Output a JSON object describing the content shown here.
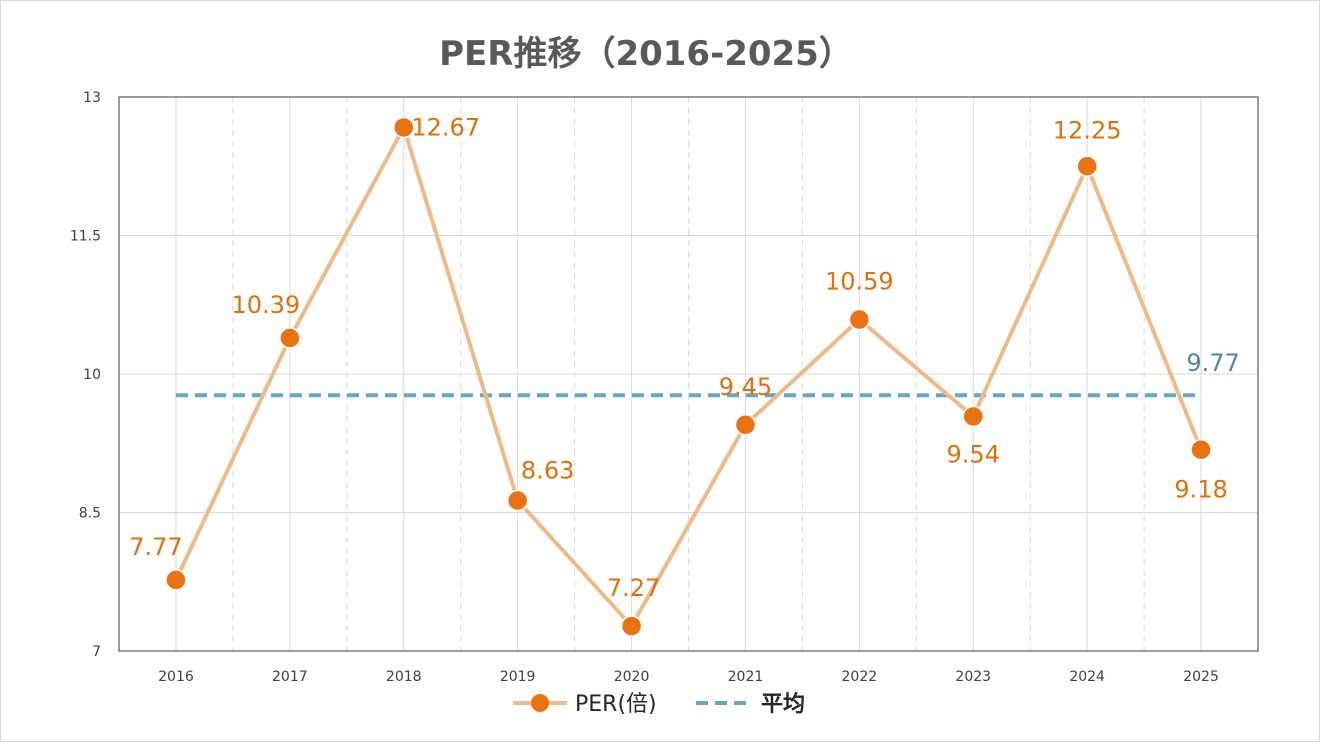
{
  "chart_data": {
    "type": "line",
    "title": "PER推移（2016-2025）",
    "xlabel": "",
    "ylabel": "",
    "categories": [
      "2016",
      "2017",
      "2018",
      "2019",
      "2020",
      "2021",
      "2022",
      "2023",
      "2024",
      "2025"
    ],
    "series": [
      {
        "name": "PER(倍)",
        "values": [
          7.77,
          10.39,
          12.67,
          8.63,
          7.27,
          9.45,
          10.59,
          9.54,
          12.25,
          9.18
        ],
        "labels": [
          "7.77",
          "10.39",
          "12.67",
          "8.63",
          "7.27",
          "9.45",
          "10.59",
          "9.54",
          "12.25",
          "9.18"
        ],
        "style": "solid-with-markers"
      },
      {
        "name": "平均",
        "value": 9.77,
        "label": "9.77",
        "style": "dashed"
      }
    ],
    "ylim": [
      7,
      13
    ],
    "yticks": [
      7,
      8.5,
      10,
      11.5,
      13
    ],
    "ytick_labels": [
      "7",
      "8.5",
      "10",
      "11.5",
      "13"
    ],
    "grid": true,
    "legend": "bottom"
  },
  "colors": {
    "line": "#EDBA8A",
    "marker": "#E97311",
    "label": "#D9720F",
    "average": "#6BA6BF",
    "average_label": "#4E86A3",
    "title": "#595959",
    "axis_text": "#404040",
    "grid": "#d9d9d9"
  }
}
